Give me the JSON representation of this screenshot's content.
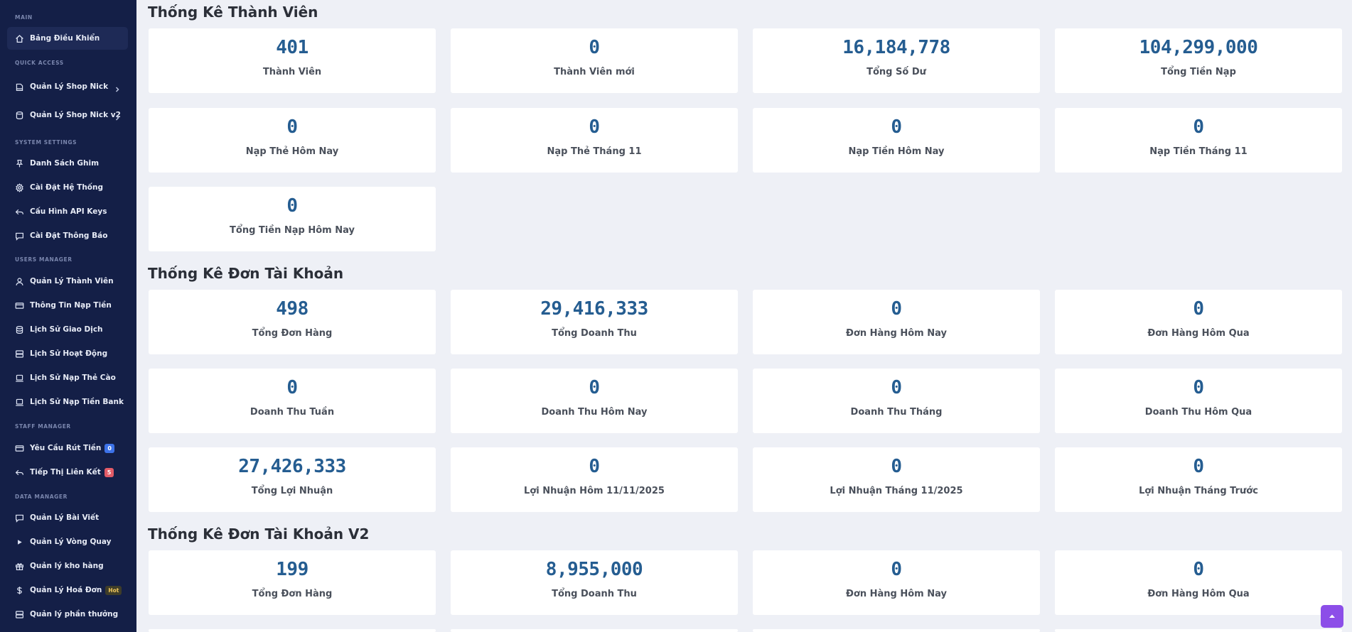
{
  "sidebar": {
    "sections": [
      {
        "title": "MAIN",
        "items": [
          {
            "label": "Bảng Điều Khiển",
            "icon": "home-icon"
          }
        ]
      },
      {
        "title": "QUICK ACCESS",
        "items": [
          {
            "label": "Quản Lý Shop Nick",
            "icon": "book-icon"
          },
          {
            "label": "Quản Lý Shop Nick v2",
            "icon": "database-icon"
          }
        ]
      },
      {
        "title": "SYSTEM SETTINGS",
        "items": [
          {
            "label": "Danh Sách Ghim",
            "icon": "pin-icon"
          },
          {
            "label": "Cài Đặt Hệ Thống",
            "icon": "gear-icon"
          },
          {
            "label": "Cấu Hình API Keys",
            "icon": "reply-icon"
          },
          {
            "label": "Cài Đặt Thông Báo",
            "icon": "message-icon"
          }
        ]
      },
      {
        "title": "USERS MANAGER",
        "items": [
          {
            "label": "Quản Lý Thành Viên",
            "icon": "user-icon"
          },
          {
            "label": "Thông Tin Nạp Tiền",
            "icon": "card-icon"
          },
          {
            "label": "Lịch Sử Giao Dịch",
            "icon": "database-icon"
          },
          {
            "label": "Lịch Sử Hoạt Động",
            "icon": "server-icon"
          },
          {
            "label": "Lịch Sử Nạp Thẻ Cào",
            "icon": "laptop-icon"
          },
          {
            "label": "Lịch Sử Nạp Tiền Bank",
            "icon": "laptop-icon"
          }
        ]
      },
      {
        "title": "STAFF MANAGER",
        "items": [
          {
            "label": "Yêu Cầu Rút Tiền",
            "icon": "card-icon",
            "badge": "0"
          },
          {
            "label": "Tiếp Thị Liên Kết",
            "icon": "reply-icon",
            "badge": "5"
          }
        ]
      },
      {
        "title": "DATA MANAGER",
        "items": [
          {
            "label": "Quản Lý Bài Viết",
            "icon": "message-icon"
          },
          {
            "label": "Quản Lý Vòng Quay",
            "icon": "play-icon"
          },
          {
            "label": "Quản lý kho hàng",
            "icon": "gift-icon"
          },
          {
            "label": "Quản Lý Hoá Đơn",
            "icon": "dollar-icon",
            "badge": "Hot"
          },
          {
            "label": "Quản lý phần thưởng",
            "icon": "server-icon"
          }
        ]
      }
    ]
  },
  "sections": [
    {
      "title": "Thống Kê Thành Viên",
      "cards": [
        {
          "value": "401",
          "label": "Thành Viên"
        },
        {
          "value": "0",
          "label": "Thành Viên mới"
        },
        {
          "value": "16,184,778",
          "label": "Tổng Số Dư"
        },
        {
          "value": "104,299,000",
          "label": "Tổng Tiền Nạp"
        },
        {
          "value": "0",
          "label": "Nạp Thẻ Hôm Nay"
        },
        {
          "value": "0",
          "label": "Nạp Thẻ Tháng 11"
        },
        {
          "value": "0",
          "label": "Nạp Tiền Hôm Nay"
        },
        {
          "value": "0",
          "label": "Nạp Tiền Tháng 11"
        },
        {
          "value": "0",
          "label": "Tổng Tiền Nạp Hôm Nay"
        }
      ]
    },
    {
      "title": "Thống Kê Đơn Tài Khoản",
      "cards": [
        {
          "value": "498",
          "label": "Tổng Đơn Hàng"
        },
        {
          "value": "29,416,333",
          "label": "Tổng Doanh Thu"
        },
        {
          "value": "0",
          "label": "Đơn Hàng Hôm Nay"
        },
        {
          "value": "0",
          "label": "Đơn Hàng Hôm Qua"
        },
        {
          "value": "0",
          "label": "Doanh Thu Tuần"
        },
        {
          "value": "0",
          "label": "Doanh Thu Hôm Nay"
        },
        {
          "value": "0",
          "label": "Doanh Thu Tháng"
        },
        {
          "value": "0",
          "label": "Doanh Thu Hôm Qua"
        },
        {
          "value": "27,426,333",
          "label": "Tổng Lợi Nhuận"
        },
        {
          "value": "0",
          "label": "Lợi Nhuận Hôm 11/11/2025"
        },
        {
          "value": "0",
          "label": "Lợi Nhuận Tháng 11/2025"
        },
        {
          "value": "0",
          "label": "Lợi Nhuận Tháng Trước"
        }
      ]
    },
    {
      "title": "Thống Kê Đơn Tài Khoản V2",
      "cards": [
        {
          "value": "199",
          "label": "Tổng Đơn Hàng"
        },
        {
          "value": "8,955,000",
          "label": "Tổng Doanh Thu"
        },
        {
          "value": "0",
          "label": "Đơn Hàng Hôm Nay"
        },
        {
          "value": "0",
          "label": "Đơn Hàng Hôm Qua"
        }
      ]
    }
  ],
  "back_to_top": {
    "icon": "caret-up-icon"
  }
}
